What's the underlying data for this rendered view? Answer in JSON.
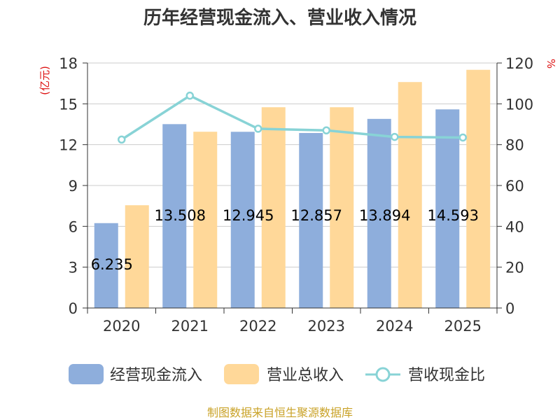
{
  "title": "历年经营现金流入、营业收入情况",
  "source": "制图数据来自恒生聚源数据库",
  "chart_data": {
    "type": "bar",
    "title": "历年经营现金流入、营业收入情况",
    "categories": [
      "2020",
      "2021",
      "2022",
      "2023",
      "2024",
      "2025"
    ],
    "left_axis": {
      "unit": "(亿元)",
      "ylim": [
        0,
        18
      ],
      "ticks": [
        "0",
        "3",
        "6",
        "9",
        "12",
        "15",
        "18"
      ]
    },
    "right_axis": {
      "unit": "%",
      "ylim": [
        0,
        120
      ],
      "ticks": [
        "0",
        "20",
        "40",
        "60",
        "80",
        "100",
        "120"
      ]
    },
    "grid": true,
    "legend_position": "bottom",
    "series": [
      {
        "name": "经营现金流入",
        "type": "bar",
        "axis": "left",
        "color": "#8eaedc",
        "values": [
          6.235,
          13.508,
          12.945,
          12.857,
          13.894,
          14.593
        ],
        "labels": [
          "6.235",
          "13.508",
          "12.945",
          "12.857",
          "13.894",
          "14.593"
        ]
      },
      {
        "name": "营业总收入",
        "type": "bar",
        "axis": "left",
        "color": "#ffd899",
        "values": [
          7.55,
          12.95,
          14.75,
          14.75,
          16.6,
          17.5
        ]
      },
      {
        "name": "营收现金比",
        "type": "line",
        "axis": "right",
        "color": "#88d3d6",
        "values": [
          82.5,
          104.0,
          87.8,
          87.0,
          83.8,
          83.5
        ]
      }
    ]
  }
}
